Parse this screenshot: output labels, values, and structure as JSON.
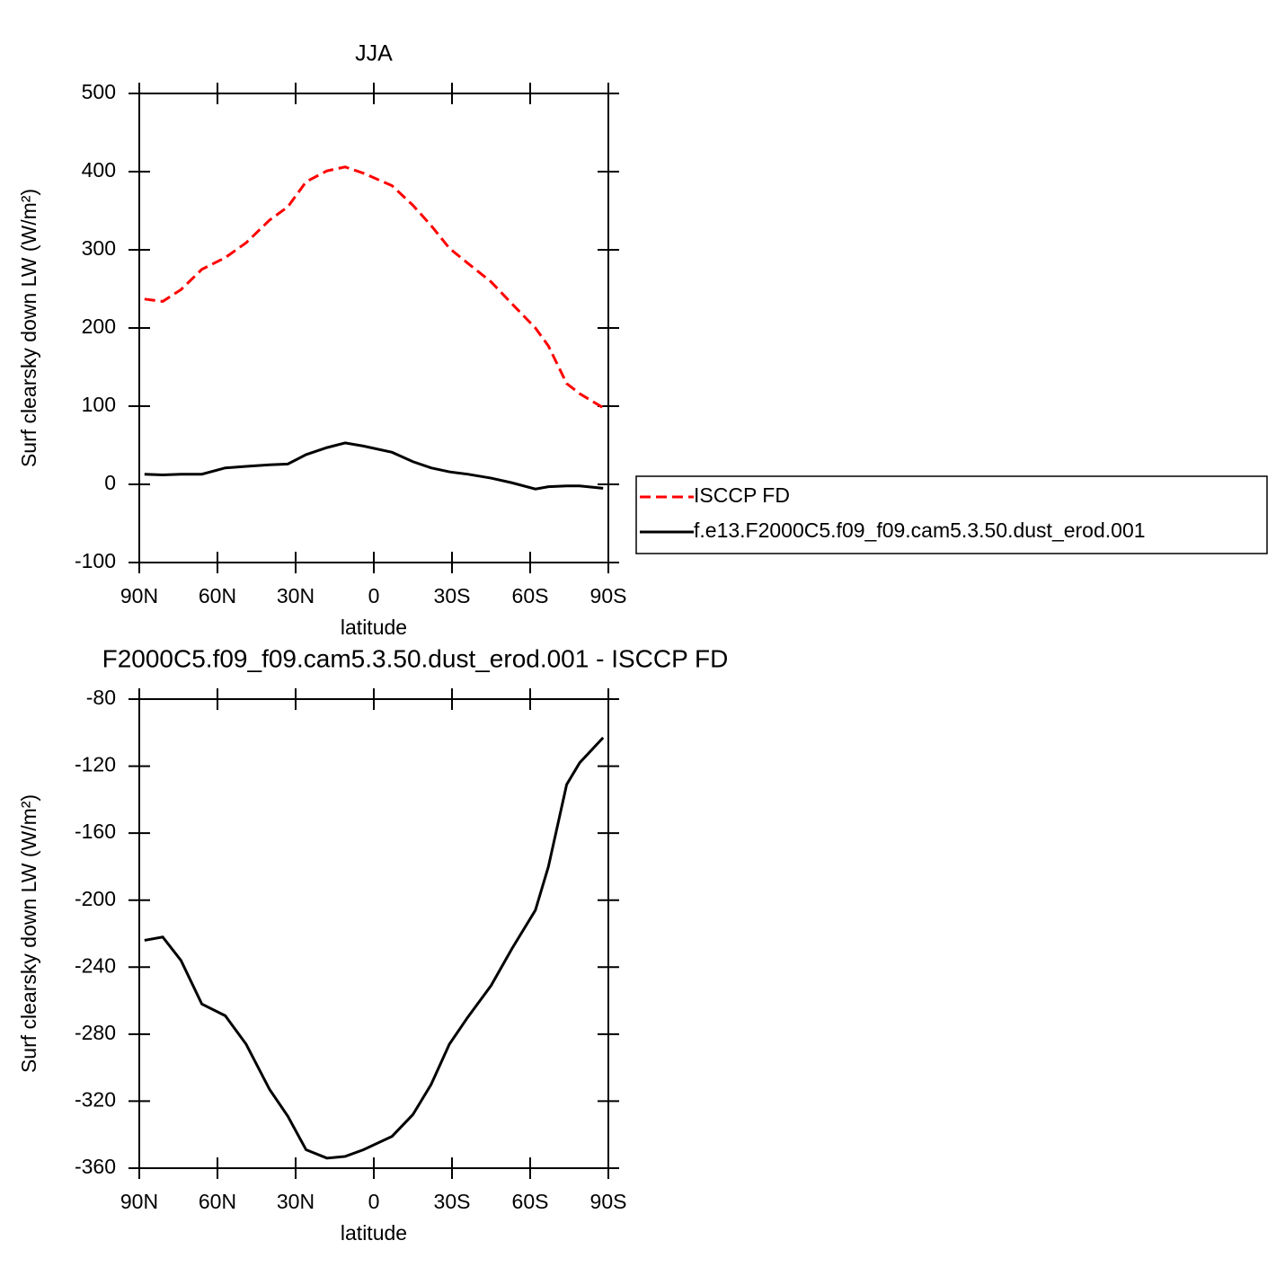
{
  "chart_data": [
    {
      "type": "line",
      "title": "JJA",
      "xlabel": "latitude",
      "ylabel": "Surf clearsky down LW (W/m²)",
      "x": [
        88,
        81,
        74,
        66,
        57,
        49,
        40,
        33,
        26,
        18,
        11,
        4,
        -7,
        -15,
        -22,
        -29,
        -36,
        -45,
        -53,
        -62,
        -67,
        -74,
        -79,
        -88
      ],
      "series": [
        {
          "name": "ISCCP FD",
          "color": "#ff0000",
          "dashed": true,
          "values": [
            237,
            234,
            249,
            275,
            290,
            309,
            338,
            355,
            387,
            401,
            406,
            398,
            382,
            357,
            331,
            302,
            283,
            259,
            231,
            200,
            177,
            129,
            116,
            98
          ]
        },
        {
          "name": "f.e13.F2000C5.f09_f09.cam5.3.50.dust_erod.001",
          "color": "#000000",
          "dashed": false,
          "values": [
            13,
            12,
            13,
            13,
            21,
            23,
            25,
            26,
            38,
            47,
            53,
            49,
            41,
            29,
            21,
            16,
            13,
            8,
            2,
            -6,
            -3,
            -2,
            -2,
            -5
          ]
        }
      ],
      "xlim": [
        90,
        -90
      ],
      "xticks": [
        {
          "value": 90,
          "label": "90N"
        },
        {
          "value": 60,
          "label": "60N"
        },
        {
          "value": 30,
          "label": "30N"
        },
        0,
        {
          "value": -30,
          "label": "30S"
        },
        {
          "value": -60,
          "label": "60S"
        },
        {
          "value": -90,
          "label": "90S"
        }
      ],
      "ylim": [
        -100,
        500
      ],
      "yticks": [
        -100,
        0,
        100,
        200,
        300,
        400,
        500
      ],
      "legend": "right"
    },
    {
      "type": "line",
      "title": "F2000C5.f09_f09.cam5.3.50.dust_erod.001 - ISCCP FD",
      "xlabel": "latitude",
      "ylabel": "Surf clearsky down LW (W/m²)",
      "x": [
        88,
        81,
        74,
        66,
        57,
        49,
        40,
        33,
        26,
        18,
        11,
        4,
        -7,
        -15,
        -22,
        -29,
        -36,
        -45,
        -53,
        -62,
        -67,
        -74,
        -79,
        -88
      ],
      "series": [
        {
          "color": "#000000",
          "dashed": false,
          "values": [
            -224,
            -222,
            -236,
            -262,
            -269,
            -286,
            -313,
            -329,
            -349,
            -354,
            -353,
            -349,
            -341,
            -328,
            -310,
            -286,
            -270,
            -251,
            -229,
            -206,
            -180,
            -131,
            -118,
            -103
          ]
        }
      ],
      "xlim": [
        90,
        -90
      ],
      "xticks": [
        {
          "value": 90,
          "label": "90N"
        },
        {
          "value": 60,
          "label": "60N"
        },
        {
          "value": 30,
          "label": "30N"
        },
        0,
        {
          "value": -30,
          "label": "30S"
        },
        {
          "value": -60,
          "label": "60S"
        },
        {
          "value": -90,
          "label": "90S"
        }
      ],
      "ylim": [
        -360,
        -80
      ],
      "yticks": [
        -360,
        -320,
        -280,
        -240,
        -200,
        -160,
        -120,
        -80
      ]
    }
  ]
}
